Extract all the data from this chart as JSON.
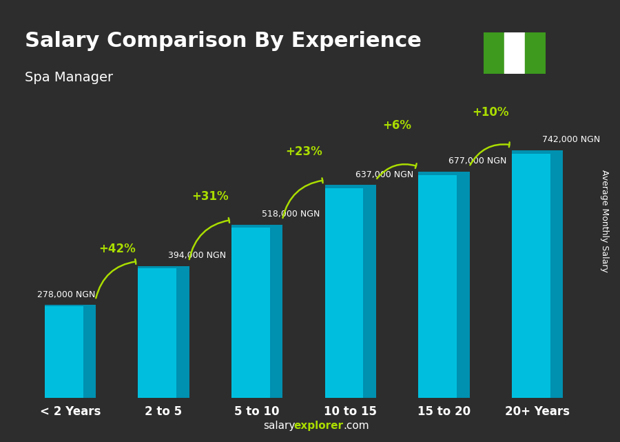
{
  "title": "Salary Comparison By Experience",
  "subtitle": "Spa Manager",
  "categories": [
    "< 2 Years",
    "2 to 5",
    "5 to 10",
    "10 to 15",
    "15 to 20",
    "20+ Years"
  ],
  "values": [
    278000,
    394000,
    518000,
    637000,
    677000,
    742000
  ],
  "salary_labels": [
    "278,000 NGN",
    "394,000 NGN",
    "518,000 NGN",
    "637,000 NGN",
    "677,000 NGN",
    "742,000 NGN"
  ],
  "pct_labels": [
    "+42%",
    "+31%",
    "+23%",
    "+6%",
    "+10%"
  ],
  "bar_color": "#00BFDE",
  "bar_color_dark": "#0090B0",
  "pct_color": "#AADD00",
  "salary_label_color": "#FFFFFF",
  "title_color": "#FFFFFF",
  "subtitle_color": "#FFFFFF",
  "background_color": "#2a2a2a",
  "ylabel": "Average Monthly Salary",
  "footer_plain": "salary",
  "footer_bold": "explorer",
  "footer_end": ".com",
  "ylim": [
    0,
    900000
  ],
  "flag_green": "#3d9a1e",
  "flag_white": "#ffffff"
}
